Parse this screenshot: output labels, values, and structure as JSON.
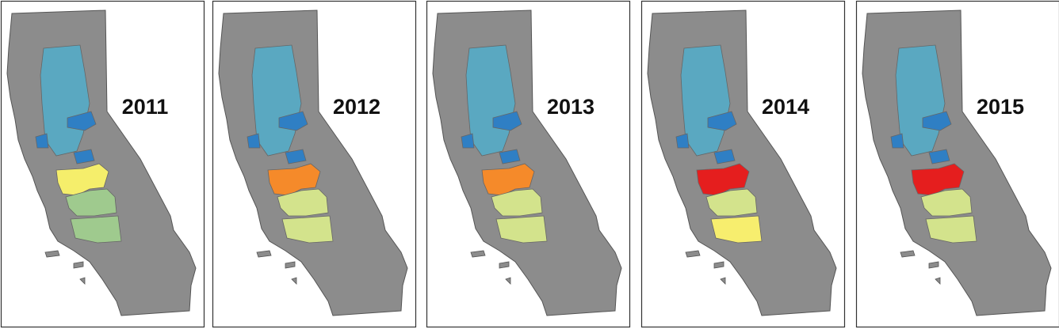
{
  "panels": [
    {
      "label": "2011",
      "fills": [
        "#5aa8c1",
        "#2f7fc4",
        "#f5ee6b",
        "#9fca8e",
        "#9fca8e"
      ]
    },
    {
      "label": "2012",
      "fills": [
        "#5aa8c1",
        "#2f7fc4",
        "#f58a2a",
        "#d3e38c",
        "#d3e38c"
      ]
    },
    {
      "label": "2013",
      "fills": [
        "#5aa8c1",
        "#2f7fc4",
        "#f58a2a",
        "#d3e38c",
        "#d3e38c"
      ]
    },
    {
      "label": "2014",
      "fills": [
        "#5aa8c1",
        "#2f7fc4",
        "#e51e1e",
        "#d3e38c",
        "#f7ee6e"
      ]
    },
    {
      "label": "2015",
      "fills": [
        "#5aa8c1",
        "#2f7fc4",
        "#e51e1e",
        "#d3e38c",
        "#d3e38c"
      ]
    }
  ]
}
